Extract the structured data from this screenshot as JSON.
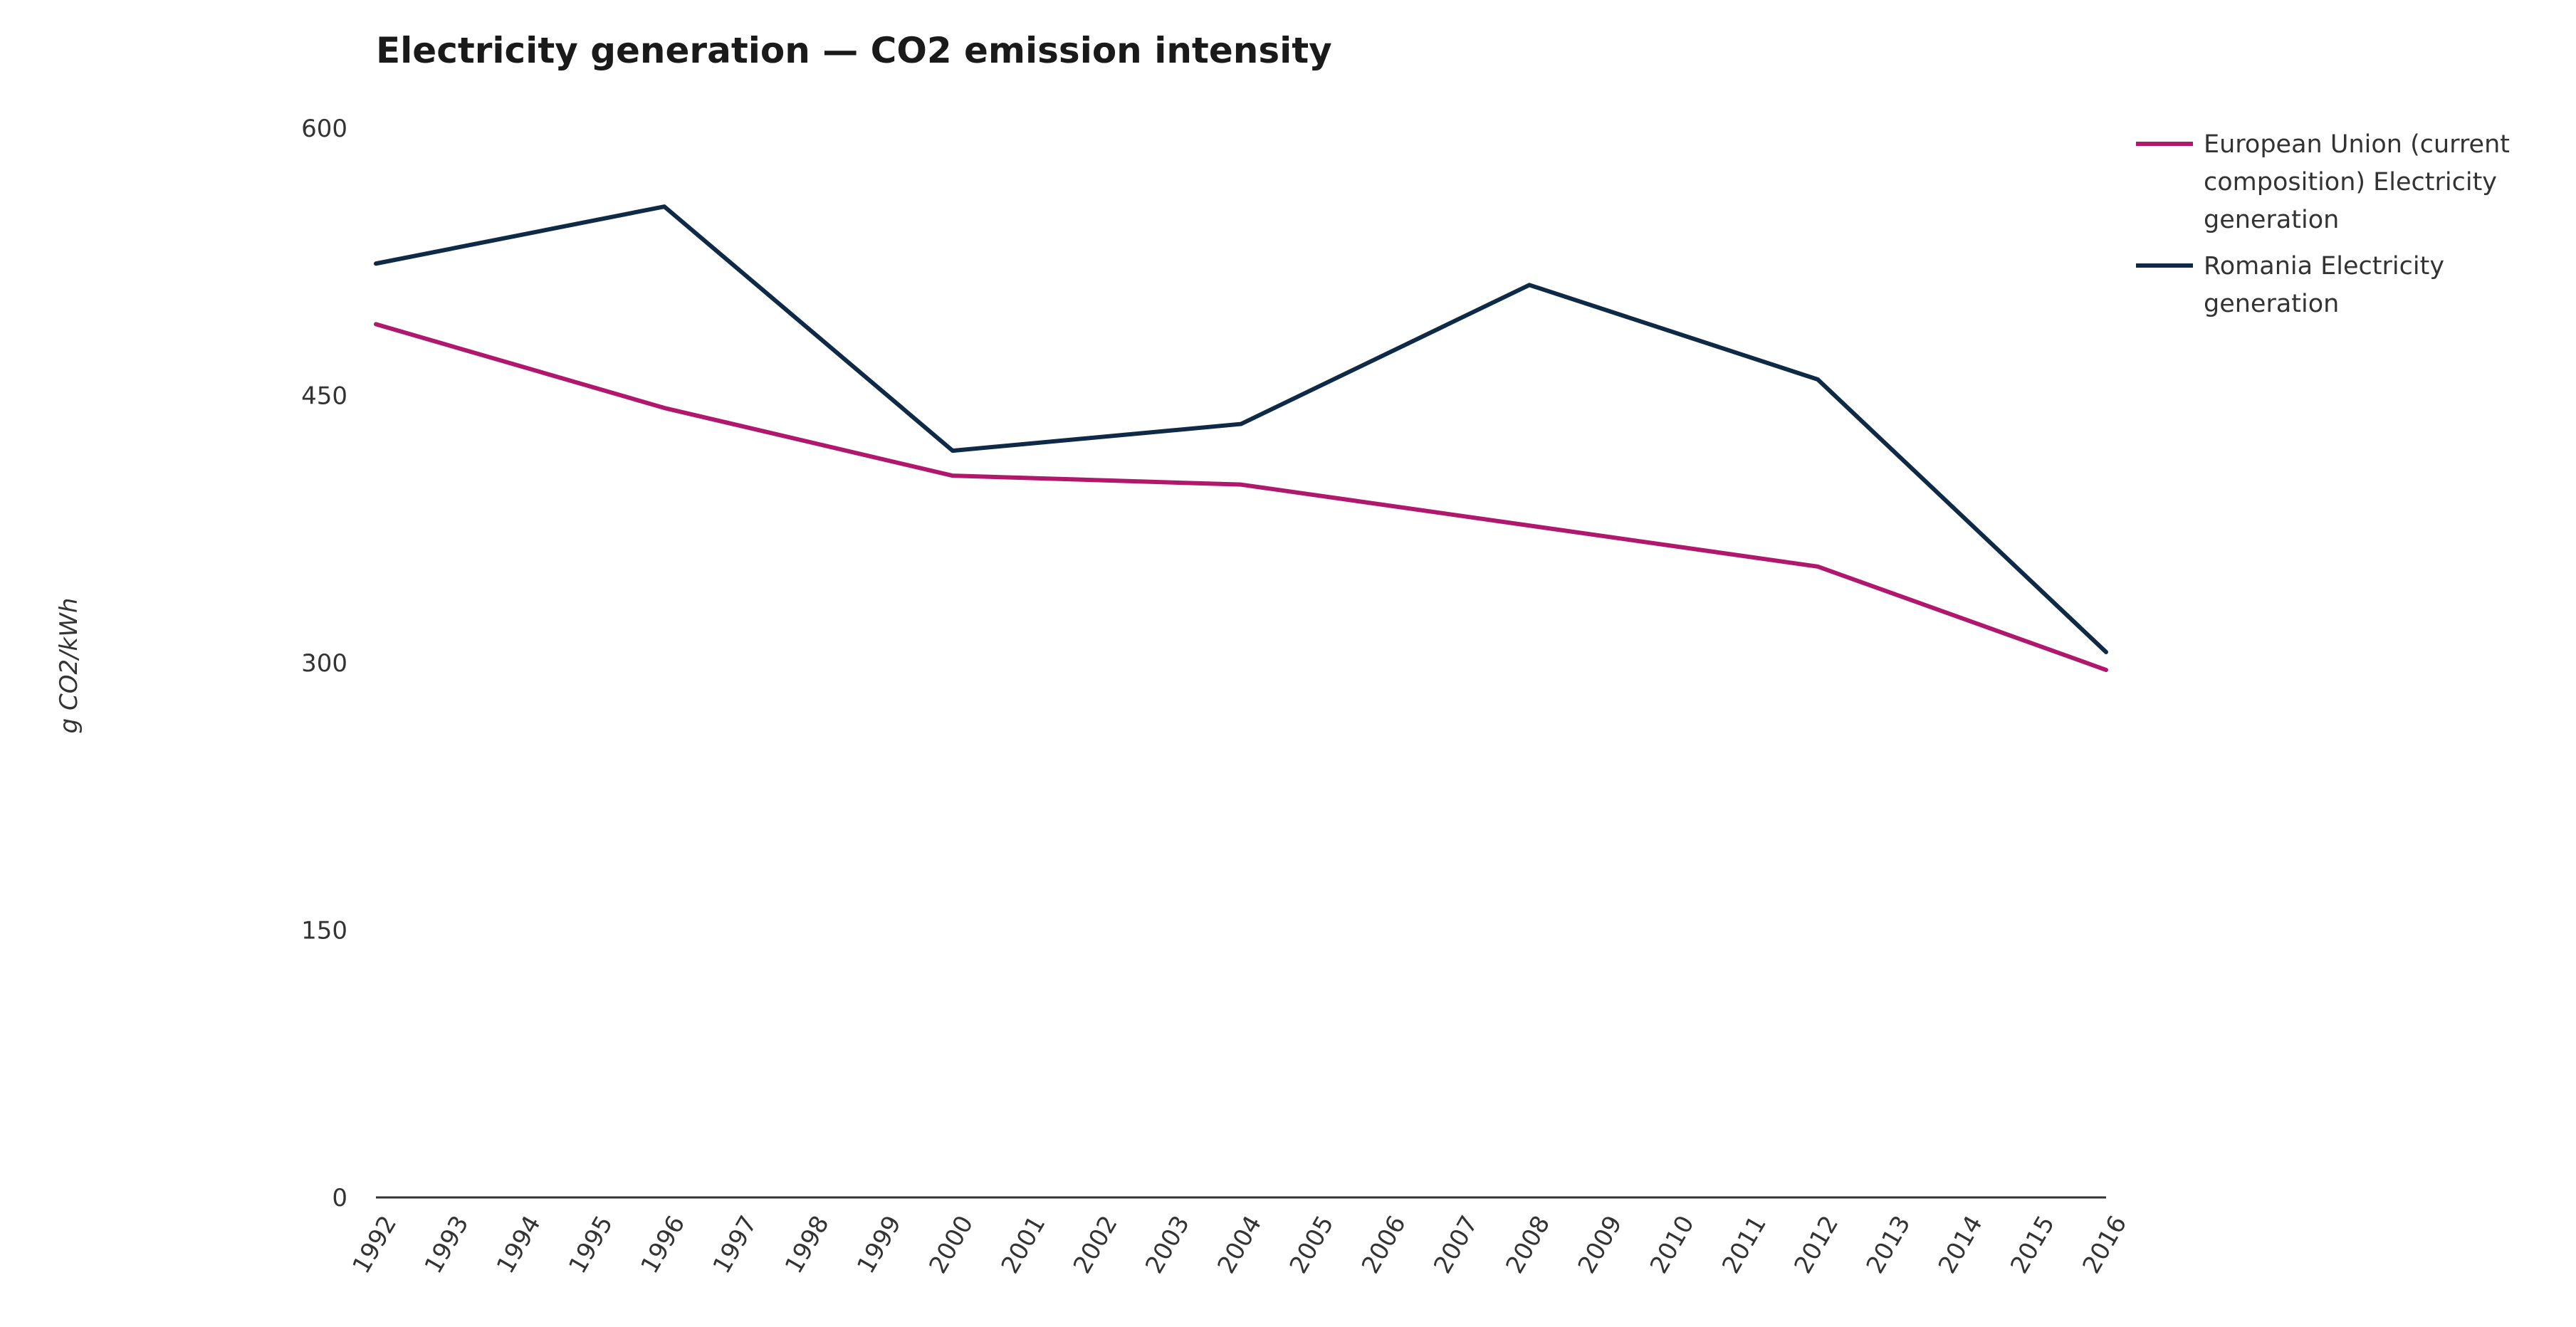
{
  "chart_data": {
    "type": "line",
    "title": "Electricity generation — CO2 emission intensity",
    "xlabel": "",
    "ylabel": "g CO2/kWh",
    "ylim": [
      0,
      600
    ],
    "yticks": [
      "0",
      "150",
      "300",
      "450",
      "600"
    ],
    "categories": [
      "1992",
      "1993",
      "1994",
      "1995",
      "1996",
      "1997",
      "1998",
      "1999",
      "2000",
      "2001",
      "2002",
      "2003",
      "2004",
      "2005",
      "2006",
      "2007",
      "2008",
      "2009",
      "2010",
      "2011",
      "2012",
      "2013",
      "2014",
      "2015",
      "2016"
    ],
    "series": [
      {
        "name": "European Union (current composition) Electricity generation",
        "legend_lines": [
          "European Union (current",
          "composition) Electricity",
          "generation"
        ],
        "color": "#b0186e",
        "x": [
          "1992",
          "1996",
          "2000",
          "2004",
          "2008",
          "2012",
          "2016"
        ],
        "values": [
          490,
          443,
          405,
          400,
          377,
          354,
          296
        ]
      },
      {
        "name": "Romania Electricity generation",
        "legend_lines": [
          "Romania Electricity",
          "generation"
        ],
        "color": "#0e2a47",
        "x": [
          "1992",
          "1996",
          "2000",
          "2004",
          "2008",
          "2012",
          "2016"
        ],
        "values": [
          524,
          556,
          419,
          434,
          512,
          459,
          306
        ]
      }
    ]
  }
}
